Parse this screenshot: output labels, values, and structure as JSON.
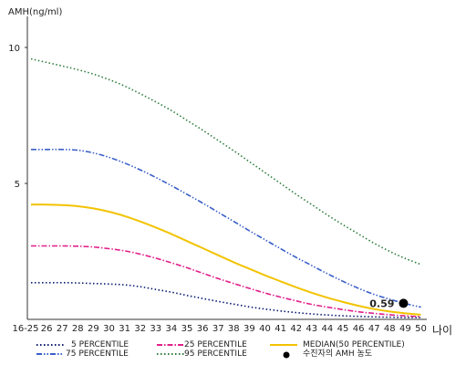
{
  "chart_data": {
    "type": "line",
    "ylabel": "AMH(ng/ml)",
    "xlabel": "나이",
    "ylim": [
      0,
      11
    ],
    "yticks": [
      10,
      5
    ],
    "categories": [
      "16-25",
      "26",
      "27",
      "28",
      "29",
      "30",
      "31",
      "32",
      "33",
      "34",
      "35",
      "36",
      "37",
      "38",
      "39",
      "40",
      "41",
      "42",
      "43",
      "44",
      "45",
      "46",
      "47",
      "48",
      "49",
      "50"
    ],
    "series": [
      {
        "name": "5 PERCENTILE",
        "color": "#0a1a6e",
        "dash": "dotted",
        "values": [
          1.35,
          1.35,
          1.35,
          1.34,
          1.32,
          1.3,
          1.27,
          1.2,
          1.1,
          1.0,
          0.88,
          0.77,
          0.66,
          0.56,
          0.46,
          0.38,
          0.31,
          0.25,
          0.2,
          0.16,
          0.13,
          0.11,
          0.09,
          0.08,
          0.07,
          0.07
        ]
      },
      {
        "name": "25 PERCENTILE",
        "color": "#e0208a",
        "dash": "dashdot",
        "values": [
          2.7,
          2.7,
          2.7,
          2.69,
          2.66,
          2.6,
          2.52,
          2.4,
          2.25,
          2.08,
          1.9,
          1.7,
          1.5,
          1.32,
          1.14,
          0.97,
          0.82,
          0.68,
          0.55,
          0.45,
          0.36,
          0.28,
          0.22,
          0.17,
          0.13,
          0.1
        ]
      },
      {
        "name": "MEDIAN(50 PERCENTILE)",
        "color": "#f2c300",
        "dash": "solid",
        "values": [
          4.22,
          4.22,
          4.2,
          4.16,
          4.08,
          3.96,
          3.8,
          3.6,
          3.38,
          3.14,
          2.88,
          2.62,
          2.36,
          2.1,
          1.86,
          1.62,
          1.4,
          1.18,
          0.98,
          0.8,
          0.64,
          0.5,
          0.38,
          0.29,
          0.22,
          0.17
        ]
      },
      {
        "name": "75 PERCENTILE",
        "color": "#3a5fc8",
        "dash": "dashdotdot",
        "values": [
          6.25,
          6.25,
          6.25,
          6.22,
          6.12,
          5.96,
          5.75,
          5.5,
          5.22,
          4.92,
          4.6,
          4.28,
          3.94,
          3.6,
          3.26,
          2.93,
          2.6,
          2.28,
          1.98,
          1.68,
          1.4,
          1.14,
          0.92,
          0.74,
          0.58,
          0.45
        ]
      },
      {
        "name": "95 PERCENTILE",
        "color": "#2e7d3c",
        "dash": "dotted",
        "values": [
          9.58,
          9.45,
          9.32,
          9.18,
          9.02,
          8.82,
          8.58,
          8.3,
          8.0,
          7.68,
          7.32,
          6.96,
          6.58,
          6.2,
          5.8,
          5.4,
          5.0,
          4.6,
          4.22,
          3.84,
          3.48,
          3.14,
          2.8,
          2.5,
          2.24,
          2.02
        ]
      }
    ],
    "point": {
      "name": "수진자의 AMH 농도",
      "category": "49",
      "value": 0.59,
      "label": "0.59"
    },
    "grid": false,
    "legend_position": "bottom"
  }
}
